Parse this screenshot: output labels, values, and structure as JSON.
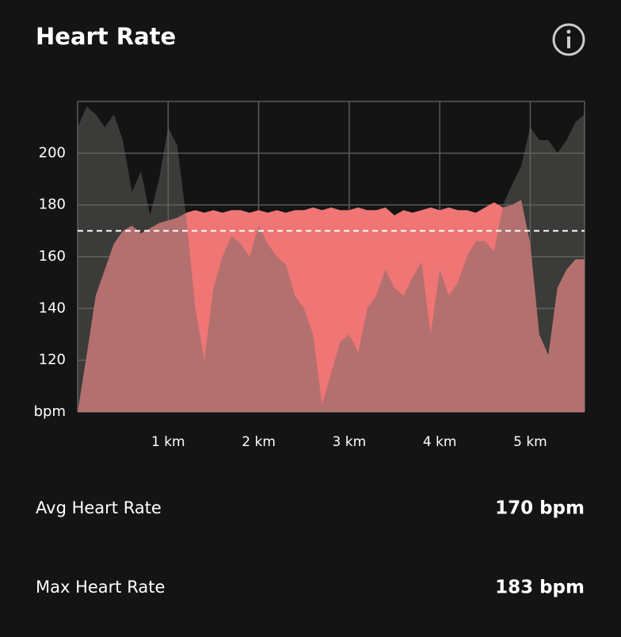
{
  "header": {
    "title": "Heart Rate"
  },
  "chart_data": {
    "type": "area",
    "x": [
      0,
      0.1,
      0.2,
      0.3,
      0.4,
      0.5,
      0.6,
      0.7,
      0.8,
      0.9,
      1.0,
      1.1,
      1.2,
      1.3,
      1.4,
      1.5,
      1.6,
      1.7,
      1.8,
      1.9,
      2.0,
      2.1,
      2.2,
      2.3,
      2.4,
      2.5,
      2.6,
      2.7,
      2.8,
      2.9,
      3.0,
      3.1,
      3.2,
      3.3,
      3.4,
      3.5,
      3.6,
      3.7,
      3.8,
      3.9,
      4.0,
      4.1,
      4.2,
      4.3,
      4.4,
      4.5,
      4.6,
      4.7,
      4.8,
      4.9,
      5.0,
      5.1,
      5.2,
      5.3,
      5.4,
      5.5,
      5.6
    ],
    "series": [
      {
        "color": "#ef7675",
        "values": [
          100,
          122,
          145,
          155,
          165,
          170,
          172,
          169,
          171,
          173,
          174,
          175,
          177,
          178,
          177,
          178,
          177,
          178,
          178,
          177,
          178,
          177,
          178,
          177,
          178,
          178,
          179,
          178,
          179,
          178,
          178,
          179,
          178,
          178,
          179,
          176,
          178,
          177,
          178,
          179,
          178,
          179,
          178,
          178,
          177,
          179,
          181,
          179,
          180,
          182,
          165,
          130,
          122,
          148,
          155,
          159,
          159
        ]
      },
      {
        "color": "#6a6a66",
        "values": [
          210,
          218,
          215,
          210,
          215,
          205,
          185,
          193,
          176,
          190,
          210,
          203,
          175,
          140,
          120,
          148,
          160,
          168,
          165,
          160,
          172,
          165,
          160,
          157,
          145,
          140,
          130,
          103,
          115,
          127,
          130,
          123,
          140,
          145,
          155,
          148,
          145,
          152,
          158,
          130,
          155,
          145,
          150,
          160,
          166,
          166,
          162,
          180,
          188,
          195,
          210,
          205,
          205,
          200,
          205,
          212,
          215
        ]
      }
    ],
    "xlim": [
      0,
      5.6
    ],
    "xticks": [
      {
        "value": 1,
        "label": "1 km"
      },
      {
        "value": 2,
        "label": "2 km"
      },
      {
        "value": 3,
        "label": "3 km"
      },
      {
        "value": 4,
        "label": "4 km"
      },
      {
        "value": 5,
        "label": "5 km"
      }
    ],
    "ylim": [
      100,
      220
    ],
    "yticks": [
      {
        "value": 100,
        "label": "bpm"
      },
      120,
      140,
      160,
      180,
      200
    ],
    "reference_line": 170,
    "grid": true
  },
  "stats": [
    {
      "label": "Avg Heart Rate",
      "value": "170 bpm"
    },
    {
      "label": "Max Heart Rate",
      "value": "183 bpm"
    }
  ]
}
